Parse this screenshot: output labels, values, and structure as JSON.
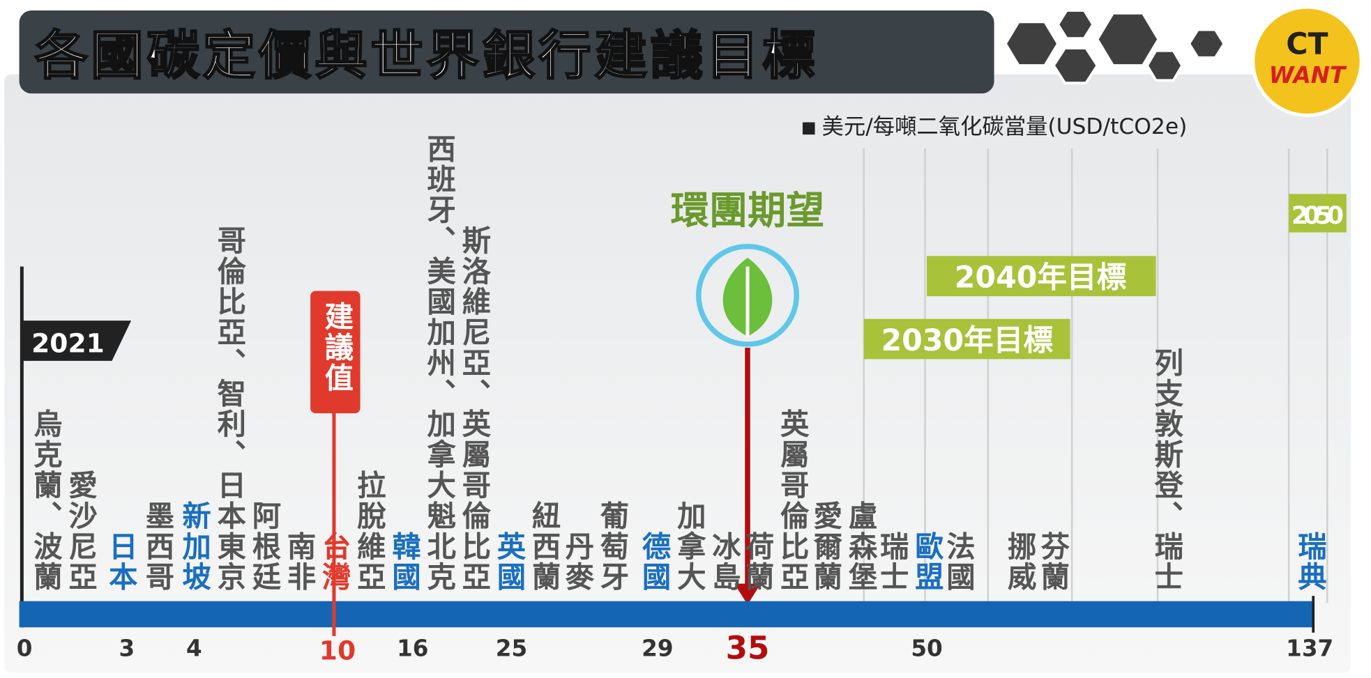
{
  "title": "各國碳定價與世界銀行建議目標",
  "unit": "美元/每噸二氧化碳當量(USD/tCO2e)",
  "logo": {
    "top": "CT",
    "bottom": "WANT"
  },
  "year_tags": [
    "2021",
    "2030年目標",
    "2040年目標",
    "2050"
  ],
  "ngo_expectation": "環團期望",
  "suggested": "建議值",
  "ticks": [
    0,
    3,
    4,
    10,
    16,
    25,
    29,
    35,
    50,
    137
  ],
  "countries": [
    {
      "text": "烏克蘭、波蘭",
      "color": "#555555"
    },
    {
      "text": "愛沙尼亞",
      "color": "#555555"
    },
    {
      "text": "日本",
      "color": "#1a6fbf"
    },
    {
      "text": "墨西哥",
      "color": "#555555"
    },
    {
      "text": "新加坡",
      "color": "#1a6fbf"
    },
    {
      "text": "哥倫比亞、智利、日本東京",
      "color": "#555555"
    },
    {
      "text": "阿根廷",
      "color": "#555555"
    },
    {
      "text": "南非",
      "color": "#555555"
    },
    {
      "text": "台灣",
      "color": "#e03a2c"
    },
    {
      "text": "拉脫維亞",
      "color": "#555555"
    },
    {
      "text": "韓國",
      "color": "#1a6fbf"
    },
    {
      "text": "西班牙、美國加州、加拿大魁北克",
      "color": "#555555"
    },
    {
      "text": "斯洛維尼亞、英屬哥倫比亞",
      "color": "#555555"
    },
    {
      "text": "英國",
      "color": "#1a6fbf"
    },
    {
      "text": "紐西蘭",
      "color": "#555555"
    },
    {
      "text": "丹麥",
      "color": "#555555"
    },
    {
      "text": "葡萄牙",
      "color": "#555555"
    },
    {
      "text": "德國",
      "color": "#1a6fbf"
    },
    {
      "text": "加拿大",
      "color": "#555555"
    },
    {
      "text": "冰島",
      "color": "#555555"
    },
    {
      "text": "荷蘭",
      "color": "#555555"
    },
    {
      "text": "英屬哥倫比亞",
      "color": "#555555"
    },
    {
      "text": "愛爾蘭",
      "color": "#555555"
    },
    {
      "text": "盧森堡",
      "color": "#555555"
    },
    {
      "text": "瑞士",
      "color": "#555555"
    },
    {
      "text": "歐盟",
      "color": "#1a6fbf"
    },
    {
      "text": "法國",
      "color": "#555555"
    },
    {
      "text": "挪威",
      "color": "#555555"
    },
    {
      "text": "芬蘭",
      "color": "#555555"
    },
    {
      "text": "列支敦斯登、瑞士",
      "color": "#555555"
    },
    {
      "text": "瑞典",
      "color": "#1a6fbf"
    }
  ]
}
